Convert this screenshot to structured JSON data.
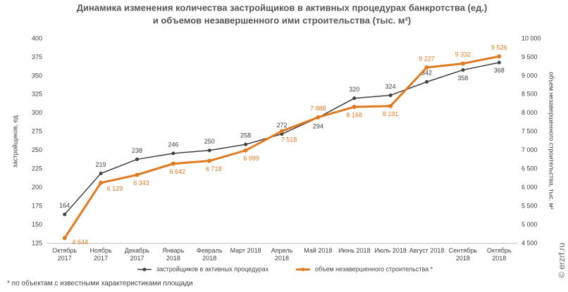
{
  "chart_data": {
    "type": "line",
    "title": [
      "Динамика изменения количества застройщиков в активных процедурах банкротства (ед.)",
      "и объемов незавершенного ими строительства (тыс. м²)"
    ],
    "ylabel": "застройщиков, ед.",
    "y2label": "объем незавершенного строительства, тыс. м²",
    "categories": [
      "Октябрь 2017",
      "Ноябрь 2017",
      "Декабрь 2017",
      "Январь 2018",
      "Февраль 2018",
      "Март 2018",
      "Апрель 2018",
      "Май 2018",
      "Июнь 2018",
      "Июль 2018",
      "Август 2018",
      "Сентябрь 2018",
      "Октябрь 2018"
    ],
    "series": [
      {
        "name": "застройщиков в активных процедурах",
        "color": "#404040",
        "values": [
          164,
          219,
          238,
          246,
          250,
          258,
          272,
          294,
          320,
          324,
          342,
          358,
          368
        ]
      },
      {
        "name": "объем незавершенного строительства *",
        "color": "#e07a1f",
        "axis": "y2",
        "values": [
          4644,
          6129,
          6343,
          6642,
          6718,
          6999,
          7518,
          7888,
          8168,
          8191,
          9227,
          9332,
          9526
        ],
        "value_labels": [
          "4 644",
          "6 129",
          "6 343",
          "6 642",
          "6 718",
          "6 999",
          "7 518",
          "7 888",
          "8 168",
          "8 191",
          "9 227",
          "9 332",
          "9 526"
        ]
      }
    ],
    "ylim": [
      125,
      400
    ],
    "yticks": [
      125,
      150,
      175,
      200,
      225,
      250,
      275,
      300,
      325,
      350,
      375,
      400
    ],
    "y2lim": [
      4500,
      10000
    ],
    "y2ticks": [
      {
        "value": 4500,
        "label": "4 500"
      },
      {
        "value": 5000,
        "label": "5 000"
      },
      {
        "value": 5500,
        "label": "5 500"
      },
      {
        "value": 6000,
        "label": "6 000"
      },
      {
        "value": 6500,
        "label": "6 500"
      },
      {
        "value": 7000,
        "label": "7 000"
      },
      {
        "value": 7500,
        "label": "7 500"
      },
      {
        "value": 8000,
        "label": "8 000"
      },
      {
        "value": 8500,
        "label": "8 500"
      },
      {
        "value": 9000,
        "label": "9 000"
      },
      {
        "value": 9500,
        "label": "9 500"
      },
      {
        "value": 10000,
        "label": "10 000"
      }
    ],
    "footnote": "* по объектам с известными характеристиками площади",
    "source": "© erzrf.ru"
  }
}
